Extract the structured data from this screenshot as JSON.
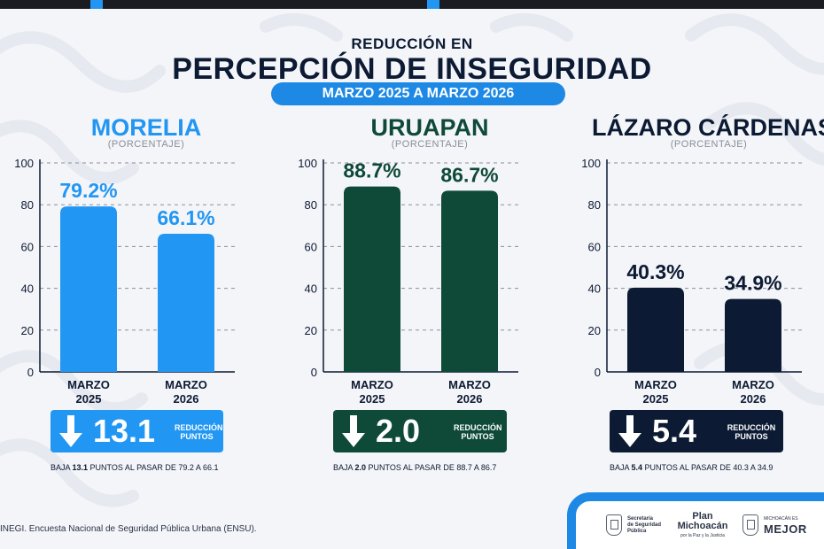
{
  "header": {
    "subtitle": "REDUCCIÓN EN",
    "title": "PERCEPCIÓN DE INSEGURIDAD",
    "date_range": "MARZO 2025 A MARZO 2026"
  },
  "chart_data": [
    {
      "type": "bar",
      "title": "MORELIA",
      "subtitle": "(PORCENTAJE)",
      "categories": [
        "MARZO 2025",
        "MARZO 2026"
      ],
      "values": [
        79.2,
        66.1
      ],
      "value_labels": [
        "79.2%",
        "66.1%"
      ],
      "yticks": [
        "100",
        "80",
        "60",
        "40",
        "20",
        "0"
      ],
      "ylim": [
        0,
        100
      ],
      "grid": true,
      "color": "#2196f3",
      "label_color": "#2196f3",
      "reduction": {
        "value": "13.1",
        "label_line1": "REDUCCIÓN",
        "label_line2": "PUNTOS",
        "note_prefix": "BAJA ",
        "note_value": "13.1",
        "note_suffix": " PUNTOS AL PASAR DE 79.2 A 66.1"
      }
    },
    {
      "type": "bar",
      "title": "URUAPAN",
      "subtitle": "(PORCENTAJE)",
      "categories": [
        "MARZO 2025",
        "MARZO 2026"
      ],
      "values": [
        88.7,
        86.7
      ],
      "value_labels": [
        "88.7%",
        "86.7%"
      ],
      "yticks": [
        "100",
        "80",
        "60",
        "40",
        "20",
        "0"
      ],
      "ylim": [
        0,
        100
      ],
      "grid": true,
      "color": "#0e4a37",
      "label_color": "#0e4a37",
      "reduction": {
        "value": "2.0",
        "label_line1": "REDUCCIÓN",
        "label_line2": "PUNTOS",
        "note_prefix": "BAJA ",
        "note_value": "2.0",
        "note_suffix": " PUNTOS AL PASAR DE 88.7 A 86.7"
      }
    },
    {
      "type": "bar",
      "title": "LÁZARO CÁRDENAS",
      "subtitle": "(PORCENTAJE)",
      "categories": [
        "MARZO 2025",
        "MARZO 2026"
      ],
      "values": [
        40.3,
        34.9
      ],
      "value_labels": [
        "40.3%",
        "34.9%"
      ],
      "yticks": [
        "100",
        "80",
        "60",
        "40",
        "20",
        "0"
      ],
      "ylim": [
        0,
        100
      ],
      "grid": true,
      "color": "#0c1a33",
      "label_color": "#0c1a33",
      "reduction": {
        "value": "5.4",
        "label_line1": "REDUCCIÓN",
        "label_line2": "PUNTOS",
        "note_prefix": "BAJA ",
        "note_value": "5.4",
        "note_suffix": " PUNTOS AL PASAR DE 40.3 A 34.9"
      }
    }
  ],
  "source": "INEGI. Encuesta Nacional de Seguridad Pública Urbana (ENSU).",
  "footer": {
    "secretaria_lines": [
      "Secretaría",
      "de Seguridad",
      "Pública"
    ],
    "plan_line1": "Plan",
    "plan_line2": "Michoacán",
    "plan_sub": "por la Paz y la Justicia",
    "mejor_small": "MICHOACÁN ES",
    "mejor_big": "MEJOR"
  },
  "colors": {
    "accent_blue": "#1e88e5",
    "navy": "#0d1a33"
  },
  "icons": [
    "down-arrow-icon",
    "state-seal-icon"
  ]
}
